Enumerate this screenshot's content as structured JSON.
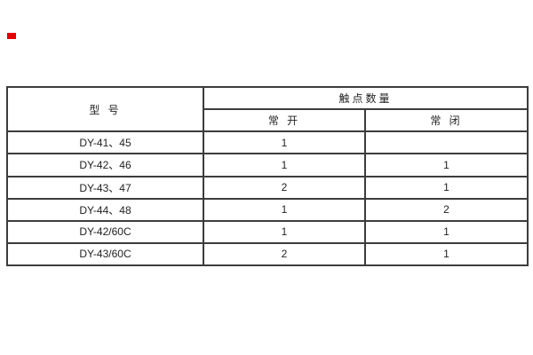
{
  "colors": {
    "red_mark": "#e60000",
    "table_border": "#3c3c3c",
    "text": "#222222",
    "background": "#ffffff"
  },
  "table": {
    "header": {
      "model_label": "型 号",
      "contact_quantity_label": "触点数量",
      "normally_open_label": "常 开",
      "normally_closed_label": "常 闭"
    },
    "rows": [
      {
        "model": "DY-41、45",
        "open": "1",
        "closed": ""
      },
      {
        "model": "DY-42、46",
        "open": "1",
        "closed": "1"
      },
      {
        "model": "DY-43、47",
        "open": "2",
        "closed": "1"
      },
      {
        "model": "DY-44、48",
        "open": "1",
        "closed": "2"
      },
      {
        "model": "DY-42/60C",
        "open": "1",
        "closed": "1"
      },
      {
        "model": "DY-43/60C",
        "open": "2",
        "closed": "1"
      }
    ]
  }
}
